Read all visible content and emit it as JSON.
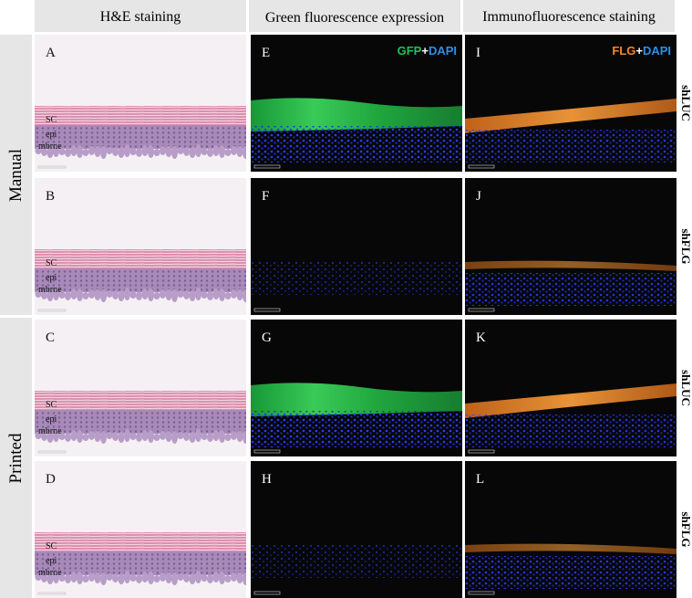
{
  "column_headers": [
    "H&E staining",
    "Green fluorescence expression",
    "Immunofluorescence staining"
  ],
  "row_groups": [
    "Manual",
    "Printed"
  ],
  "row_labels": [
    "shLUC",
    "shFLG",
    "shLUC",
    "shFLG"
  ],
  "panels": [
    [
      {
        "letter": "A",
        "layer_labels": [
          "SC",
          "epi",
          "mbrne"
        ]
      },
      {
        "letter": "E",
        "legend": [
          {
            "text": "GFP",
            "color": "#1fc25a"
          },
          {
            "text": "+",
            "color": "#ffffff"
          },
          {
            "text": "DAPI",
            "color": "#2f8fe6"
          }
        ]
      },
      {
        "letter": "I",
        "legend": [
          {
            "text": "FLG",
            "color": "#f08a2a"
          },
          {
            "text": "+",
            "color": "#ffffff"
          },
          {
            "text": "DAPI",
            "color": "#2f8fe6"
          }
        ]
      }
    ],
    [
      {
        "letter": "B",
        "layer_labels": [
          "SC",
          "epi",
          "mbrne"
        ]
      },
      {
        "letter": "F"
      },
      {
        "letter": "J"
      }
    ],
    [
      {
        "letter": "C",
        "layer_labels": [
          "SC",
          "epi",
          "mbrne"
        ]
      },
      {
        "letter": "G"
      },
      {
        "letter": "K"
      }
    ],
    [
      {
        "letter": "D",
        "layer_labels": [
          "SC",
          "epi",
          "mbrne"
        ]
      },
      {
        "letter": "H"
      },
      {
        "letter": "L"
      }
    ]
  ]
}
